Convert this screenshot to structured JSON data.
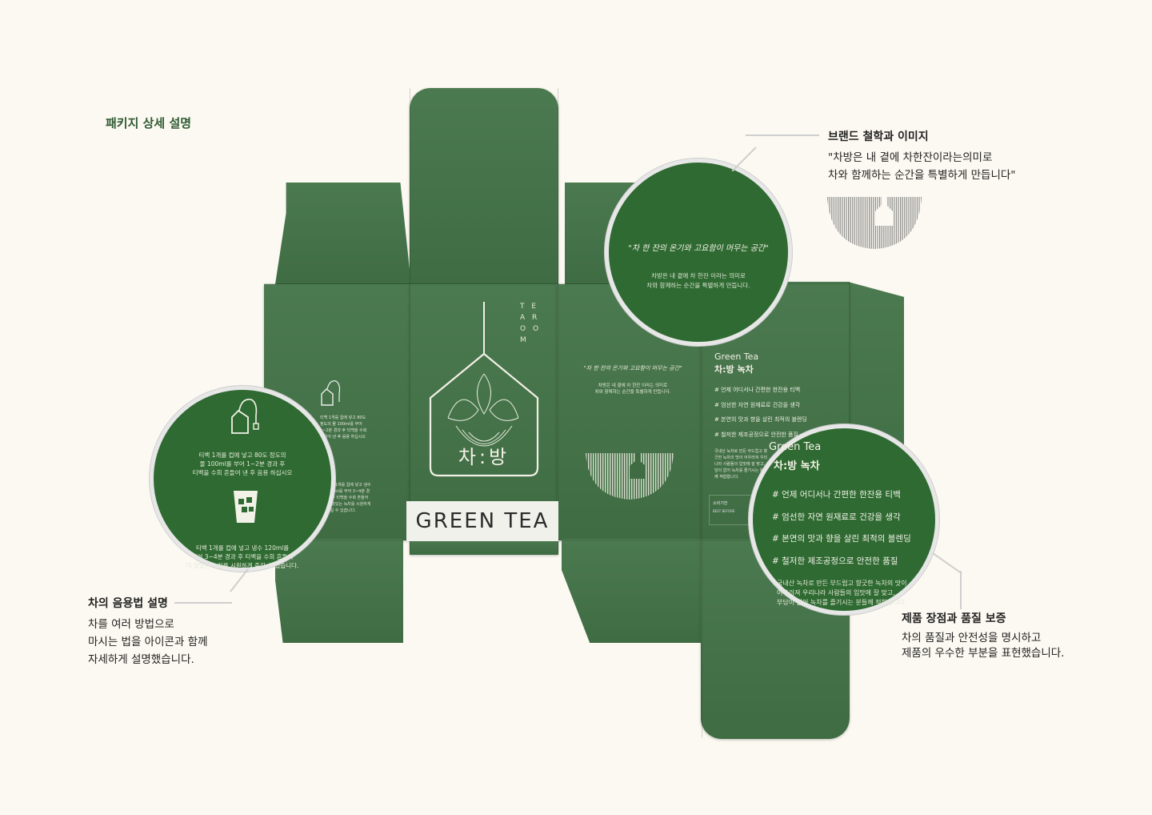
{
  "page_title": "패키지 상세 설명",
  "box": {
    "logo_text": "차:방",
    "brand_side": "T E A R O O M",
    "product_label": "GREEN TEA",
    "motto": "\"차 한 잔의 온기와 고요함이 머무는 공간\"",
    "motto_sub": "차방은 내 곁에 차 한잔 이라는 의미로\n차와 함께하는 순간을 특별하게 만듭니다.",
    "side_en": "Green Tea",
    "side_ko": "차:방 녹차",
    "features": [
      "# 언제 어디서나 간편한 한잔용 티백",
      "# 엄선한 자연 원재료로 건강을 생각",
      "# 본연의 맛과 향을 살린 최적의 블렌딩",
      "# 철저한 제조공정으로 안전한 품질"
    ],
    "side_desc": "국내산 녹차로 만든 부드럽고 향긋한 녹차의 맛이 어우러져 우리나라 사람들의 입맛에 잘 맞고, 부담이 없어 녹차를 즐기시는 분들께 적합합니다.",
    "bestbefore_ko": "소비기한",
    "bestbefore_en": "BEST BEFORE",
    "left_panel_hot": "티백 1개를 컵에 넣고 80도 정도의 물 100ml를 부어 1~2분 경과 후 티백을 수회 흔들어 낸 후 음용 하십시오",
    "left_panel_cold": "티백 1개를 컵에 넣고 냉수 120ml를 부어 3~4분 경과 후 티백을 수회 흔들어 더 맛있는 녹차를 시원하게 즐길 수 있습니다."
  },
  "zoom_brand": {
    "motto": "\"차 한 잔의 온기와 고요함이 머무는 공간\"",
    "line1": "차방은 내 곁에 차 한잔 이라는 의미로",
    "line2": "차와 함께하는 순간을 특별하게 만듭니다."
  },
  "zoom_howto": {
    "hot": "티백 1개를 컵에 넣고 80도 정도의\n물 100ml를 부어 1~2분 경과 후\n티백을 수회 흔들어 낸 후 음용 하십시오",
    "cold": "티백 1개를 컵에 넣고 냉수 120ml를\n부어 3~4분 경과 후 티백을 수회 흔들어\n더 맛있는 녹차를 시원하게 즐길 수 있습니다."
  },
  "zoom_quality": {
    "en": "Green Tea",
    "ko": "차:방 녹차",
    "features": [
      "# 언제 어디서나 간편한 한잔용 티백",
      "# 엄선한 자연 원재료로 건강을 생각",
      "# 본연의 맛과 향을 살린 최적의 블렌딩",
      "# 철저한 제조공정으로 안전한 품질"
    ],
    "desc": "국내산 녹차로 만든 부드럽고 향긋한 녹차의 맛이\n어우러져 우리나라 사람들의 입맛에 잘 맞고,\n부담이 없어 녹차를 즐기시는 분들께 적합합니다."
  },
  "annotations": {
    "brand": {
      "title": "브랜드 철학과 이미지",
      "line1": "\"차방은 내 곁에 차한잔이라는의미로",
      "line2": "차와 함께하는 순간을 특별하게 만듭니다\""
    },
    "howto": {
      "title": "차의 음용법 설명",
      "line1": "차를 여러 방법으로",
      "line2": "마시는 법을 아이콘과 함께",
      "line3": "자세하게 설명했습니다."
    },
    "quality": {
      "title": "제품 장점과 품질 보증",
      "line1": "차의 품질과 안전성을 명시하고",
      "line2": "제품의 우수한 부분을 표현했습니다."
    }
  },
  "colors": {
    "background": "#fbf9f1",
    "box_green": "#3f6e43",
    "circle_green": "#2f6a32",
    "accent_text": "#2f5a32"
  }
}
